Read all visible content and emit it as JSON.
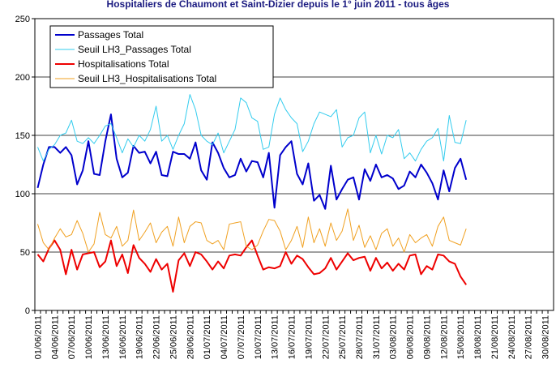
{
  "chart_data": {
    "type": "line",
    "title": "Hospitaliers de Chaumont et Saint-Dizier depuis le 1° juin 2011 - tous âges",
    "categories": [
      "01/06/2011",
      null,
      null,
      "04/06/2011",
      null,
      null,
      "07/06/2011",
      null,
      null,
      "10/06/2011",
      null,
      null,
      "13/06/2011",
      null,
      null,
      "16/06/2011",
      null,
      null,
      "19/06/2011",
      null,
      null,
      "22/06/2011",
      null,
      null,
      "25/06/2011",
      null,
      null,
      "28/06/2011",
      null,
      null,
      "01/07/2011",
      null,
      null,
      "04/07/2011",
      null,
      null,
      "07/07/2011",
      null,
      null,
      "10/07/2011",
      null,
      null,
      "13/07/2011",
      null,
      null,
      "16/07/2011",
      null,
      null,
      "19/07/2011",
      null,
      null,
      "22/07/2011",
      null,
      null,
      "25/07/2011",
      null,
      null,
      "28/07/2011",
      null,
      null,
      "31/07/2011",
      null,
      null,
      "03/08/2011",
      null,
      null,
      "06/08/2011",
      null,
      null,
      "09/08/2011",
      null,
      null,
      "12/08/2011",
      null,
      null,
      "15/08/2011",
      null,
      null,
      "18/08/2011",
      null,
      null,
      "21/08/2011",
      null,
      null,
      "24/08/2011",
      null,
      null,
      "27/08/2011",
      null,
      null,
      "30/08/2011",
      null
    ],
    "series": [
      {
        "name": "Passages Total",
        "color": "#0000cc",
        "width": 2,
        "values": [
          105,
          125,
          140,
          140,
          135,
          140,
          133,
          108,
          120,
          145,
          117,
          116,
          145,
          168,
          130,
          114,
          118,
          141,
          135,
          136,
          126,
          136,
          116,
          115,
          136,
          134,
          134,
          130,
          144,
          120,
          112,
          144,
          135,
          122,
          114,
          116,
          130,
          119,
          128,
          127,
          114,
          135,
          88,
          133,
          140,
          145,
          117,
          108,
          126,
          94,
          99,
          87,
          124,
          95,
          104,
          112,
          114,
          95,
          121,
          111,
          125,
          114,
          116,
          113,
          104,
          107,
          119,
          114,
          125,
          118,
          109,
          95,
          120,
          102,
          122,
          130,
          112,
          null,
          null,
          null,
          null,
          null,
          null,
          null,
          null,
          null,
          null,
          null,
          null,
          null,
          null,
          null
        ]
      },
      {
        "name": "Seuil LH3_Passages Total",
        "color": "#33ccee",
        "width": 1,
        "values": [
          140,
          128,
          138,
          142,
          150,
          152,
          163,
          145,
          143,
          148,
          143,
          150,
          158,
          160,
          148,
          135,
          147,
          140,
          150,
          145,
          155,
          175,
          145,
          150,
          138,
          150,
          160,
          185,
          172,
          150,
          145,
          142,
          152,
          135,
          145,
          155,
          182,
          178,
          165,
          162,
          138,
          140,
          168,
          182,
          172,
          165,
          160,
          136,
          145,
          160,
          170,
          168,
          166,
          172,
          140,
          148,
          150,
          165,
          170,
          135,
          150,
          134,
          150,
          148,
          155,
          130,
          135,
          128,
          138,
          145,
          148,
          156,
          128,
          167,
          144,
          143,
          163,
          null,
          null,
          null,
          null,
          null,
          null,
          null,
          null,
          null,
          null,
          null,
          null,
          null,
          null,
          null
        ]
      },
      {
        "name": "Hospitalisations Total",
        "color": "#ee0000",
        "width": 2,
        "values": [
          48,
          42,
          53,
          60,
          52,
          31,
          52,
          35,
          48,
          49,
          50,
          37,
          42,
          60,
          38,
          48,
          32,
          56,
          45,
          40,
          33,
          44,
          35,
          40,
          16,
          43,
          49,
          38,
          50,
          48,
          42,
          35,
          42,
          36,
          47,
          48,
          47,
          54,
          60,
          47,
          35,
          37,
          36,
          38,
          50,
          40,
          47,
          44,
          37,
          31,
          32,
          36,
          45,
          35,
          42,
          49,
          43,
          45,
          46,
          34,
          45,
          36,
          41,
          34,
          40,
          35,
          47,
          48,
          31,
          38,
          35,
          48,
          47,
          42,
          40,
          29,
          22,
          null,
          null,
          null,
          null,
          null,
          null,
          null,
          null,
          null,
          null,
          null,
          null,
          null,
          null,
          null
        ]
      },
      {
        "name": "Seuil LH3_Hospitalisations Total",
        "color": "#f0a020",
        "width": 1,
        "values": [
          74,
          58,
          52,
          62,
          70,
          63,
          65,
          77,
          66,
          50,
          57,
          84,
          65,
          62,
          72,
          55,
          60,
          86,
          60,
          67,
          75,
          58,
          67,
          72,
          55,
          80,
          58,
          72,
          76,
          75,
          60,
          57,
          60,
          52,
          74,
          75,
          76,
          55,
          52,
          56,
          68,
          78,
          77,
          68,
          52,
          60,
          72,
          54,
          80,
          58,
          70,
          55,
          75,
          60,
          68,
          87,
          60,
          73,
          54,
          64,
          52,
          66,
          70,
          55,
          62,
          50,
          65,
          58,
          62,
          65,
          55,
          72,
          80,
          60,
          58,
          56,
          70,
          null,
          null,
          null,
          null,
          null,
          null,
          null,
          null,
          null,
          null,
          null,
          null,
          null,
          null,
          null
        ]
      }
    ],
    "ylim": [
      0,
      250
    ],
    "yticks": [
      0,
      50,
      100,
      150,
      200,
      250
    ],
    "grid": true,
    "legend": "upper-left"
  }
}
